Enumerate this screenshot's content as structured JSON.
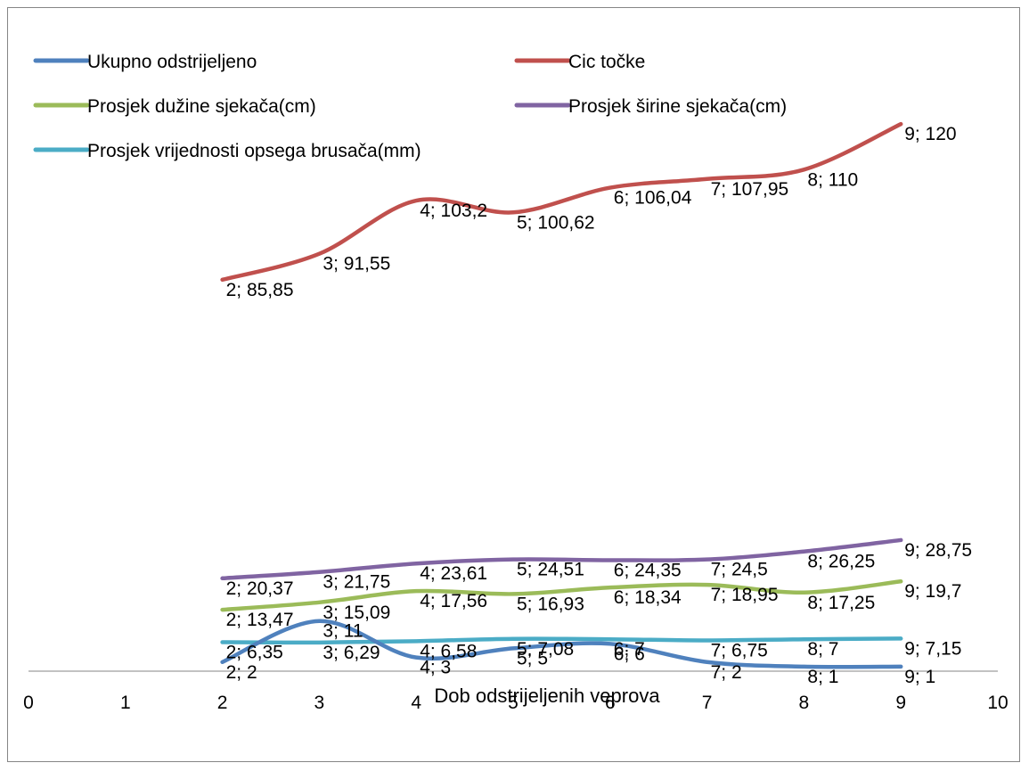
{
  "chart_data": {
    "type": "line",
    "smooth": true,
    "title": "",
    "xlabel": "Dob odstrijeljenih veprova",
    "ylabel": "",
    "xlim": [
      0,
      10
    ],
    "x_ticks": [
      "0",
      "1",
      "2",
      "3",
      "4",
      "5",
      "6",
      "7",
      "8",
      "9",
      "10"
    ],
    "ylim": [
      0,
      130
    ],
    "y_axis_visible": false,
    "grid": false,
    "legend_position": "top",
    "series": [
      {
        "name": "Ukupno odstrijeljeno",
        "color": "#4f81bd",
        "x": [
          2,
          3,
          4,
          5,
          6,
          7,
          8,
          9
        ],
        "values": [
          2,
          11,
          3,
          5,
          6,
          2,
          1,
          1
        ],
        "labels": [
          "2; 2",
          "3; 11",
          "4; 3",
          "5; 5",
          "6; 6",
          "7; 2",
          "8; 1",
          "9; 1"
        ]
      },
      {
        "name": "Cic točke",
        "color": "#c0504d",
        "x": [
          2,
          3,
          4,
          5,
          6,
          7,
          8,
          9
        ],
        "values": [
          85.85,
          91.55,
          103.2,
          100.62,
          106.04,
          107.95,
          110,
          120
        ],
        "labels": [
          "2; 85,85",
          "3; 91,55",
          "4; 103,2",
          "5; 100,62",
          "6; 106,04",
          "7; 107,95",
          "8; 110",
          "9; 120"
        ]
      },
      {
        "name": "Prosjek dužine sjekača(cm)",
        "color": "#9bbb59",
        "x": [
          2,
          3,
          4,
          5,
          6,
          7,
          8,
          9
        ],
        "values": [
          13.47,
          15.09,
          17.56,
          16.93,
          18.34,
          18.95,
          17.25,
          19.7
        ],
        "labels": [
          "2; 13,47",
          "3; 15,09",
          "4; 17,56",
          "5; 16,93",
          "6; 18,34",
          "7; 18,95",
          "8; 17,25",
          "9; 19,7"
        ]
      },
      {
        "name": "Prosjek širine sjekača(cm)",
        "color": "#8064a2",
        "x": [
          2,
          3,
          4,
          5,
          6,
          7,
          8,
          9
        ],
        "values": [
          20.37,
          21.75,
          23.61,
          24.51,
          24.35,
          24.5,
          26.25,
          28.75
        ],
        "labels": [
          "2; 20,37",
          "3; 21,75",
          "4; 23,61",
          "5; 24,51",
          "6; 24,35",
          "7; 24,5",
          "8; 26,25",
          "9; 28,75"
        ]
      },
      {
        "name": "Prosjek vrijednosti opsega brusača(mm)",
        "color": "#4bacc6",
        "x": [
          2,
          3,
          4,
          5,
          6,
          7,
          8,
          9
        ],
        "values": [
          6.35,
          6.29,
          6.58,
          7.08,
          7,
          6.75,
          7,
          7.15
        ],
        "labels": [
          "2; 6,35",
          "3; 6,29",
          "4; 6,58",
          "5; 7,08",
          "6; 7",
          "7; 6,75",
          "8; 7",
          "9; 7,15"
        ]
      }
    ]
  }
}
